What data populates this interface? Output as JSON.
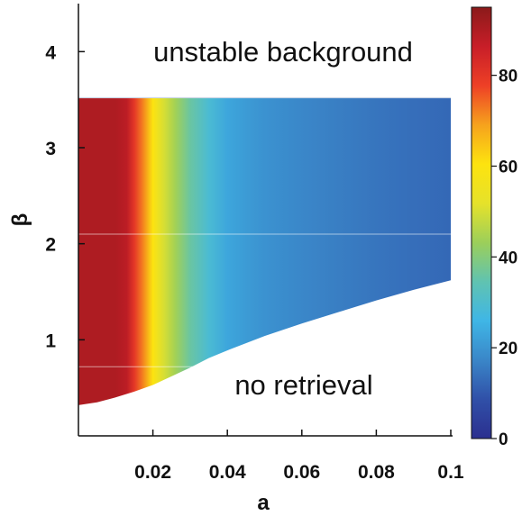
{
  "chart_data": {
    "type": "heatmap",
    "xlabel": "a",
    "ylabel": "β",
    "xlim": [
      0,
      0.1
    ],
    "ylim": [
      0,
      4.5
    ],
    "x_ticks": [
      0.02,
      0.04,
      0.06,
      0.08,
      0.1
    ],
    "x_tick_labels": [
      "0.02",
      "0.04",
      "0.06",
      "0.08",
      "0.1"
    ],
    "y_ticks": [
      1,
      2,
      3,
      4
    ],
    "y_tick_labels": [
      "1",
      "2",
      "3",
      "4"
    ],
    "upper_boundary_beta": 3.52,
    "lower_boundary": {
      "a": [
        0.0,
        0.005,
        0.01,
        0.015,
        0.02,
        0.025,
        0.03,
        0.035,
        0.04,
        0.05,
        0.06,
        0.07,
        0.08,
        0.09,
        0.1
      ],
      "beta": [
        0.32,
        0.35,
        0.4,
        0.46,
        0.53,
        0.62,
        0.71,
        0.81,
        0.89,
        1.04,
        1.17,
        1.29,
        1.41,
        1.52,
        1.62
      ]
    },
    "color_profile": {
      "a": [
        0.0,
        0.01,
        0.013,
        0.015,
        0.017,
        0.019,
        0.02,
        0.021,
        0.023,
        0.026,
        0.03,
        0.035,
        0.04,
        0.045,
        0.05,
        0.06,
        0.07,
        0.08,
        0.09,
        0.1
      ],
      "value": [
        90,
        90,
        88,
        80,
        73,
        65,
        60,
        56,
        50,
        44,
        36,
        29,
        23,
        21,
        19.5,
        17.5,
        16,
        14.5,
        13.5,
        12.5
      ]
    },
    "colorbar": {
      "range": [
        0,
        95
      ],
      "ticks": [
        0,
        20,
        40,
        60,
        80
      ],
      "tick_labels": [
        "0",
        "20",
        "40",
        "60",
        "80"
      ],
      "colors": [
        "#2b2f8f",
        "#3050a8",
        "#3a86c8",
        "#3fb6e6",
        "#60c3b1",
        "#9ccf5a",
        "#e6e22a",
        "#fde30f",
        "#f6a21d",
        "#ee4026",
        "#c81e28",
        "#8b1a1a"
      ]
    },
    "annotations": [
      "unstable background",
      "no retrieval"
    ]
  }
}
